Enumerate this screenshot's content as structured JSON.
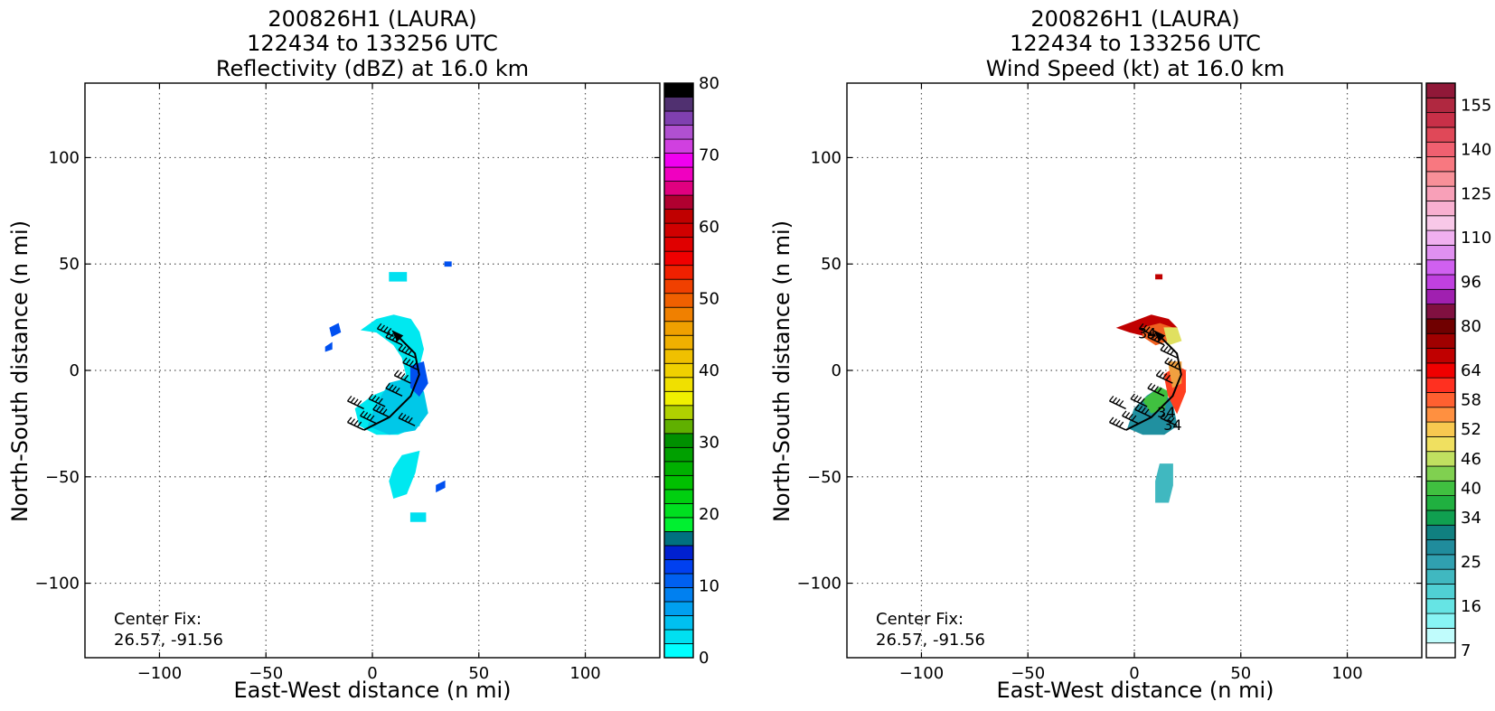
{
  "chart_data": [
    {
      "type": "heatmap",
      "title_lines": [
        "200826H1 (LAURA)",
        "122434 to 133256 UTC",
        "Reflectivity (dBZ) at 16.0 km"
      ],
      "xlabel": "East-West distance (n mi)",
      "ylabel": "North-South distance (n mi)",
      "xlim": [
        -135,
        135
      ],
      "ylim": [
        -135,
        135
      ],
      "xticks": [
        -100,
        -50,
        0,
        50,
        100
      ],
      "yticks": [
        -100,
        -50,
        0,
        50,
        100
      ],
      "xtick_labels": [
        "−100",
        "−50",
        "0",
        "50",
        "100"
      ],
      "ytick_labels": [
        "−100",
        "−50",
        "0",
        "50",
        "100"
      ],
      "grid": true,
      "annotation_lines": [
        "Center Fix:",
        "26.57, -91.56"
      ],
      "colorbar": {
        "range": [
          0,
          80
        ],
        "tick_values": [
          0,
          10,
          20,
          30,
          40,
          50,
          60,
          70,
          80
        ],
        "tick_labels": [
          "0",
          "10",
          "20",
          "30",
          "40",
          "50",
          "60",
          "70",
          "80"
        ],
        "colors": [
          "#00ffff",
          "#00e0f0",
          "#00c0f0",
          "#00a0f0",
          "#0080f0",
          "#0060f0",
          "#0040f0",
          "#0020d0",
          "#007080",
          "#00f030",
          "#00e020",
          "#00d010",
          "#00c000",
          "#00b000",
          "#00a000",
          "#009000",
          "#60b000",
          "#b0d000",
          "#f0f000",
          "#f0e000",
          "#f0d000",
          "#f0c000",
          "#f0b000",
          "#f0a000",
          "#f08000",
          "#f06000",
          "#f04000",
          "#f02000",
          "#f00000",
          "#e00000",
          "#d00000",
          "#c00000",
          "#b00030",
          "#e00080",
          "#f000c0",
          "#f000f0",
          "#d040e0",
          "#b050d0",
          "#8040b0",
          "#503070",
          "#000000"
        ],
        "colors_order": "bottom-to-top"
      },
      "echo_regions": [
        {
          "color": "#00e8f0",
          "points": [
            [
              -5,
              19
            ],
            [
              2,
              24
            ],
            [
              10,
              26
            ],
            [
              18,
              24
            ],
            [
              22,
              18
            ],
            [
              24,
              10
            ],
            [
              22,
              2
            ],
            [
              20,
              -6
            ],
            [
              22,
              -12
            ],
            [
              24,
              -18
            ],
            [
              22,
              -26
            ],
            [
              12,
              -30
            ],
            [
              2,
              -30
            ],
            [
              -6,
              -26
            ],
            [
              -8,
              -18
            ],
            [
              0,
              -12
            ],
            [
              10,
              -8
            ],
            [
              16,
              -2
            ],
            [
              14,
              6
            ],
            [
              10,
              12
            ],
            [
              2,
              18
            ]
          ]
        },
        {
          "color": "#00c8e8",
          "points": [
            [
              8,
              -6
            ],
            [
              16,
              -4
            ],
            [
              24,
              -10
            ],
            [
              26,
              -20
            ],
            [
              20,
              -28
            ],
            [
              8,
              -30
            ],
            [
              -2,
              -26
            ],
            [
              2,
              -16
            ]
          ]
        },
        {
          "color": "#0050f0",
          "points": [
            [
              18,
              2
            ],
            [
              24,
              4
            ],
            [
              26,
              -6
            ],
            [
              22,
              -12
            ],
            [
              18,
              -8
            ]
          ]
        },
        {
          "color": "#0050f0",
          "points": [
            [
              -20,
              20
            ],
            [
              -16,
              22
            ],
            [
              -15,
              18
            ],
            [
              -19,
              16
            ]
          ]
        },
        {
          "color": "#0050f0",
          "points": [
            [
              -22,
              11
            ],
            [
              -19,
              13
            ],
            [
              -19,
              10
            ],
            [
              -22,
              9
            ]
          ]
        },
        {
          "color": "#00e0f0",
          "points": [
            [
              8,
              46
            ],
            [
              16,
              46
            ],
            [
              16,
              42
            ],
            [
              8,
              42
            ]
          ]
        },
        {
          "color": "#0050f0",
          "points": [
            [
              34,
              51
            ],
            [
              37,
              51
            ],
            [
              37,
              49
            ],
            [
              34,
              49
            ]
          ]
        },
        {
          "color": "#00e8f0",
          "points": [
            [
              14,
              -40
            ],
            [
              22,
              -38
            ],
            [
              20,
              -48
            ],
            [
              16,
              -58
            ],
            [
              10,
              -60
            ],
            [
              8,
              -52
            ],
            [
              10,
              -46
            ]
          ]
        },
        {
          "color": "#0050f0",
          "points": [
            [
              30,
              -54
            ],
            [
              34,
              -52
            ],
            [
              34,
              -55
            ],
            [
              30,
              -57
            ]
          ]
        },
        {
          "color": "#00e0f0",
          "points": [
            [
              18,
              -67
            ],
            [
              25,
              -67
            ],
            [
              25,
              -71
            ],
            [
              18,
              -71
            ]
          ]
        }
      ],
      "flight_track": [
        [
          -4,
          -28
        ],
        [
          8,
          -22
        ],
        [
          18,
          -12
        ],
        [
          22,
          -2
        ],
        [
          20,
          8
        ],
        [
          12,
          16
        ]
      ],
      "wind_barbs": [
        [
          -4,
          -28
        ],
        [
          2,
          -25
        ],
        [
          8,
          -22
        ],
        [
          -4,
          -18
        ],
        [
          6,
          -17
        ],
        [
          14,
          -12
        ],
        [
          18,
          -6
        ],
        [
          22,
          0
        ],
        [
          20,
          6
        ],
        [
          14,
          12
        ],
        [
          10,
          16
        ],
        [
          20,
          -26
        ]
      ]
    },
    {
      "type": "heatmap",
      "title_lines": [
        "200826H1 (LAURA)",
        "122434 to 133256 UTC",
        "Wind Speed (kt) at 16.0 km"
      ],
      "xlabel": "East-West distance (n mi)",
      "ylabel": "North-South distance (n mi)",
      "xlim": [
        -135,
        135
      ],
      "ylim": [
        -135,
        135
      ],
      "xticks": [
        -100,
        -50,
        0,
        50,
        100
      ],
      "yticks": [
        -100,
        -50,
        0,
        50,
        100
      ],
      "xtick_labels": [
        "−100",
        "−50",
        "0",
        "50",
        "100"
      ],
      "ytick_labels": [
        "−100",
        "−50",
        "0",
        "50",
        "100"
      ],
      "grid": true,
      "annotation_lines": [
        "Center Fix:",
        "26.57, -91.56"
      ],
      "contour_labels": [
        {
          "text": "34",
          "x": 6,
          "y": 15
        },
        {
          "text": "34",
          "x": 15,
          "y": -22
        },
        {
          "text": "34",
          "x": 18,
          "y": -28
        }
      ],
      "colorbar": {
        "tick_labels": [
          "7",
          "16",
          "25",
          "34",
          "40",
          "46",
          "52",
          "58",
          "64",
          "80",
          "96",
          "110",
          "125",
          "140",
          "155"
        ],
        "tick_bins": [
          0,
          3,
          6,
          9,
          11,
          13,
          15,
          17,
          19,
          22,
          25,
          28,
          31,
          34,
          37
        ],
        "colors": [
          "#ffffff",
          "#c0fcfc",
          "#88f4f4",
          "#66e4e4",
          "#50d0d4",
          "#40b8c0",
          "#30a0b0",
          "#208c9c",
          "#108080",
          "#10a050",
          "#20b040",
          "#40c040",
          "#80d050",
          "#c0e060",
          "#f0e060",
          "#f8c850",
          "#ff9040",
          "#ff6030",
          "#ff3020",
          "#f00000",
          "#c00000",
          "#a00000",
          "#700000",
          "#801040",
          "#a020b0",
          "#c040e0",
          "#d060f0",
          "#e090f0",
          "#f0b0f0",
          "#f8c8e8",
          "#f8b0d0",
          "#f8a0b8",
          "#f89098",
          "#f87880",
          "#f06070",
          "#e04858",
          "#c83048",
          "#b02840",
          "#901838"
        ],
        "colors_order": "bottom-to-top"
      },
      "echo_regions": [
        {
          "color": "#2090a0",
          "points": [
            [
              -3,
              -27
            ],
            [
              4,
              -30
            ],
            [
              14,
              -30
            ],
            [
              20,
              -26
            ],
            [
              18,
              -16
            ],
            [
              12,
              -8
            ],
            [
              6,
              -12
            ],
            [
              0,
              -18
            ]
          ]
        },
        {
          "color": "#40c040",
          "points": [
            [
              4,
              -14
            ],
            [
              12,
              -8
            ],
            [
              16,
              -10
            ],
            [
              14,
              -18
            ],
            [
              8,
              -20
            ]
          ]
        },
        {
          "color": "#ff4020",
          "points": [
            [
              14,
              -2
            ],
            [
              20,
              2
            ],
            [
              24,
              0
            ],
            [
              24,
              -10
            ],
            [
              20,
              -20
            ],
            [
              16,
              -12
            ]
          ]
        },
        {
          "color": "#f0a040",
          "points": [
            [
              16,
              4
            ],
            [
              22,
              4
            ],
            [
              22,
              -6
            ],
            [
              18,
              -8
            ]
          ]
        },
        {
          "color": "#c00000",
          "points": [
            [
              -8,
              20
            ],
            [
              0,
              23
            ],
            [
              8,
              26
            ],
            [
              16,
              24
            ],
            [
              20,
              20
            ],
            [
              14,
              14
            ],
            [
              6,
              16
            ],
            [
              -2,
              18
            ]
          ]
        },
        {
          "color": "#f06020",
          "points": [
            [
              4,
              20
            ],
            [
              12,
              22
            ],
            [
              18,
              20
            ],
            [
              16,
              14
            ],
            [
              10,
              12
            ],
            [
              4,
              16
            ]
          ]
        },
        {
          "color": "#e0e060",
          "points": [
            [
              14,
              20
            ],
            [
              20,
              20
            ],
            [
              22,
              14
            ],
            [
              16,
              12
            ]
          ]
        },
        {
          "color": "#40b8c0",
          "points": [
            [
              12,
              -44
            ],
            [
              18,
              -44
            ],
            [
              18,
              -54
            ],
            [
              16,
              -62
            ],
            [
              10,
              -62
            ],
            [
              10,
              -52
            ]
          ]
        },
        {
          "color": "#c00000",
          "points": [
            [
              10,
              45
            ],
            [
              13,
              45
            ],
            [
              13,
              43
            ],
            [
              10,
              43
            ]
          ]
        }
      ],
      "flight_track": [
        [
          -4,
          -28
        ],
        [
          8,
          -22
        ],
        [
          18,
          -12
        ],
        [
          22,
          -2
        ],
        [
          20,
          8
        ],
        [
          12,
          16
        ]
      ],
      "wind_barbs": [
        [
          -4,
          -28
        ],
        [
          2,
          -25
        ],
        [
          8,
          -22
        ],
        [
          -4,
          -18
        ],
        [
          6,
          -17
        ],
        [
          14,
          -12
        ],
        [
          18,
          -6
        ],
        [
          22,
          0
        ],
        [
          20,
          6
        ],
        [
          14,
          12
        ],
        [
          10,
          16
        ],
        [
          20,
          -26
        ]
      ]
    }
  ]
}
